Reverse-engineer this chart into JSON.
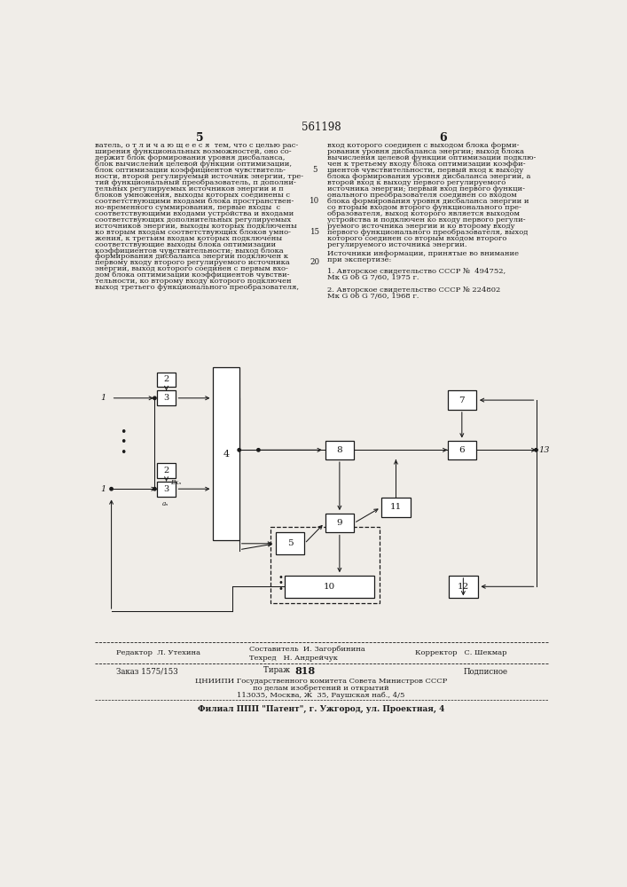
{
  "title_number": "561198",
  "col_left_num": "5",
  "col_right_num": "6",
  "bg_color": "#f0ede8",
  "text_color": "#1a1a1a",
  "footer_left": "Редактор  Л. Утехина",
  "footer_mid1": "Составитель  И. Загорбинина",
  "footer_mid2": "Техред   Н. Андрейчук",
  "footer_mid3": "Корректор   С. Шекмар",
  "footer_order": "Заказ 1575/153",
  "footer_print": "Тираж  818",
  "footer_sign": "Подписное",
  "footer_org1": "ЦНИИПИ Государственного комитета Совета Министров СССР",
  "footer_org2": "по делам изобретений и открытий",
  "footer_addr": "113035, Москва, Ж  35, Раушская наб., 4/5",
  "footer_branch": "Филиал ППП \"Патент\", г. Ужгород, ул. Проектная, 4"
}
